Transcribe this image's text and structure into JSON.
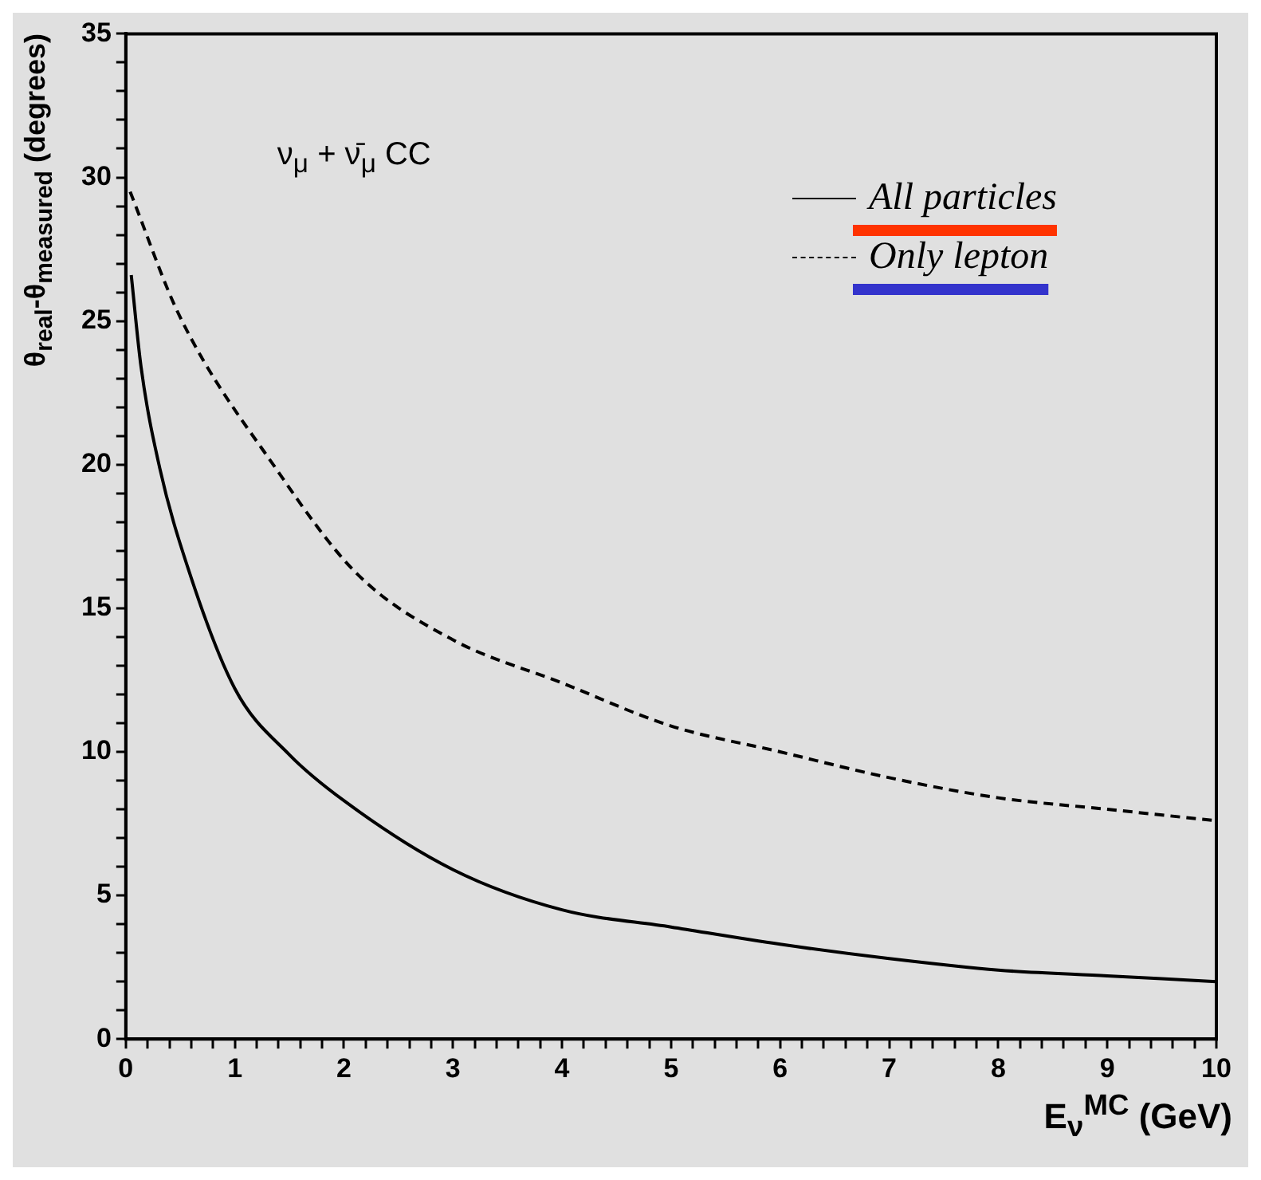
{
  "chart_data": {
    "type": "line",
    "xlabel": "E$_{ν}$$^{MC}$ (GeV)",
    "ylabel": "θ$_{real}$-θ$_{measured}$ (degrees)",
    "annotations": [
      "ν$_{μ}$ + ν̄$_{μ}$  CC"
    ],
    "series": [
      {
        "name": "All particles",
        "color": "#000000",
        "line_style": "solid",
        "x": [
          0.05,
          0.14,
          0.31,
          0.57,
          1,
          1.5,
          2,
          3,
          4,
          5,
          6,
          7,
          8,
          9,
          10
        ],
        "values": [
          26.6,
          23.4,
          19.9,
          16.4,
          12.2,
          9.9,
          8.3,
          5.9,
          4.5,
          3.9,
          3.3,
          2.8,
          2.4,
          2.2,
          2.0
        ]
      },
      {
        "name": "Only lepton",
        "color": "#000000",
        "line_style": "dashed",
        "x": [
          0.04,
          0.49,
          1.37,
          2.12,
          3,
          4,
          5,
          6,
          7,
          8,
          9,
          10
        ],
        "values": [
          29.5,
          25.2,
          19.9,
          16.2,
          13.9,
          12.4,
          10.9,
          10.0,
          9.1,
          8.4,
          8.0,
          7.6
        ]
      }
    ],
    "xlim": [
      0,
      10
    ],
    "ylim": [
      0,
      35
    ],
    "xticks": [
      0,
      {
        "value": 0.2,
        "label": null
      },
      {
        "value": 0.4,
        "label": null
      },
      {
        "value": 0.6,
        "label": null
      },
      {
        "value": 0.8,
        "label": null
      },
      1,
      {
        "value": 1.2,
        "label": null
      },
      {
        "value": 1.4,
        "label": null
      },
      {
        "value": 1.6,
        "label": null
      },
      {
        "value": 1.8,
        "label": null
      },
      2,
      {
        "value": 2.2,
        "label": null
      },
      {
        "value": 2.4,
        "label": null
      },
      {
        "value": 2.6,
        "label": null
      },
      {
        "value": 2.8,
        "label": null
      },
      3,
      {
        "value": 3.2,
        "label": null
      },
      {
        "value": 3.4,
        "label": null
      },
      {
        "value": 3.6,
        "label": null
      },
      {
        "value": 3.8,
        "label": null
      },
      4,
      {
        "value": 4.2,
        "label": null
      },
      {
        "value": 4.4,
        "label": null
      },
      {
        "value": 4.6,
        "label": null
      },
      {
        "value": 4.8,
        "label": null
      },
      5,
      {
        "value": 5.2,
        "label": null
      },
      {
        "value": 5.4,
        "label": null
      },
      {
        "value": 5.6,
        "label": null
      },
      {
        "value": 5.8,
        "label": null
      },
      6,
      {
        "value": 6.2,
        "label": null
      },
      {
        "value": 6.4,
        "label": null
      },
      {
        "value": 6.6,
        "label": null
      },
      {
        "value": 6.8,
        "label": null
      },
      7,
      {
        "value": 7.2,
        "label": null
      },
      {
        "value": 7.4,
        "label": null
      },
      {
        "value": 7.6,
        "label": null
      },
      {
        "value": 7.8,
        "label": null
      },
      8,
      {
        "value": 8.2,
        "label": null
      },
      {
        "value": 8.4,
        "label": null
      },
      {
        "value": 8.6,
        "label": null
      },
      {
        "value": 8.8,
        "label": null
      },
      9,
      {
        "value": 9.2,
        "label": null
      },
      {
        "value": 9.4,
        "label": null
      },
      {
        "value": 9.6,
        "label": null
      },
      {
        "value": 9.8,
        "label": null
      },
      10
    ],
    "yticks": [
      0,
      {
        "value": 1,
        "label": null
      },
      {
        "value": 2,
        "label": null
      },
      {
        "value": 3,
        "label": null
      },
      {
        "value": 4,
        "label": null
      },
      5,
      {
        "value": 6,
        "label": null
      },
      {
        "value": 7,
        "label": null
      },
      {
        "value": 8,
        "label": null
      },
      {
        "value": 9,
        "label": null
      },
      10,
      {
        "value": 11,
        "label": null
      },
      {
        "value": 12,
        "label": null
      },
      {
        "value": 13,
        "label": null
      },
      {
        "value": 14,
        "label": null
      },
      15,
      {
        "value": 16,
        "label": null
      },
      {
        "value": 17,
        "label": null
      },
      {
        "value": 18,
        "label": null
      },
      {
        "value": 19,
        "label": null
      },
      20,
      {
        "value": 21,
        "label": null
      },
      {
        "value": 22,
        "label": null
      },
      {
        "value": 23,
        "label": null
      },
      {
        "value": 24,
        "label": null
      },
      25,
      {
        "value": 26,
        "label": null
      },
      {
        "value": 27,
        "label": null
      },
      {
        "value": 28,
        "label": null
      },
      {
        "value": 29,
        "label": null
      },
      30,
      {
        "value": 31,
        "label": null
      },
      {
        "value": 32,
        "label": null
      },
      {
        "value": 33,
        "label": null
      },
      {
        "value": 34,
        "label": null
      },
      35
    ],
    "grid": false,
    "legend": "top right",
    "marker": "none"
  }
}
